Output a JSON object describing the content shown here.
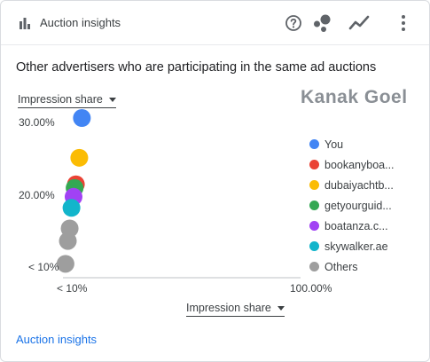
{
  "header": {
    "title": "Auction insights",
    "icons": [
      "bar-chart-icon",
      "help-circle-icon",
      "scatter-chart-icon",
      "line-chart-icon",
      "more-vert-icon"
    ]
  },
  "subtitle": "Other advertisers who are participating in the same ad auctions",
  "y_dropdown": "Impression share",
  "x_dropdown": "Impression share",
  "watermark": "Kanak Goel",
  "footer_link": "Auction insights",
  "chart_data": {
    "type": "scatter",
    "title": "",
    "xlabel": "Impression share",
    "ylabel": "Impression share",
    "x_ticks": [
      "< 10%",
      "100.00%"
    ],
    "y_ticks": [
      "30.00%",
      "20.00%",
      "< 10%"
    ],
    "xlim": [
      10,
      100
    ],
    "ylim": [
      10,
      30
    ],
    "legend_position": "right",
    "grid": false,
    "series": [
      {
        "name": "You",
        "color": "#4285f4",
        "x": 16.6,
        "y": 30.0
      },
      {
        "name": "bookanyboa...",
        "color": "#ea4335",
        "x": 14.3,
        "y": 21.0
      },
      {
        "name": "dubaiyachtb...",
        "color": "#fbbc04",
        "x": 15.6,
        "y": 24.6
      },
      {
        "name": "getyourguid...",
        "color": "#34a853",
        "x": 13.8,
        "y": 20.5
      },
      {
        "name": "boatanza.c...",
        "color": "#a142f4",
        "x": 13.4,
        "y": 19.3
      },
      {
        "name": "skywalker.ae",
        "color": "#12b5cb",
        "x": 12.6,
        "y": 17.8
      },
      {
        "name": "Others",
        "color": "#9e9e9e",
        "points": [
          [
            11.9,
            15.0
          ],
          [
            11.2,
            13.3
          ],
          [
            10.3,
            10.2
          ]
        ]
      }
    ]
  }
}
